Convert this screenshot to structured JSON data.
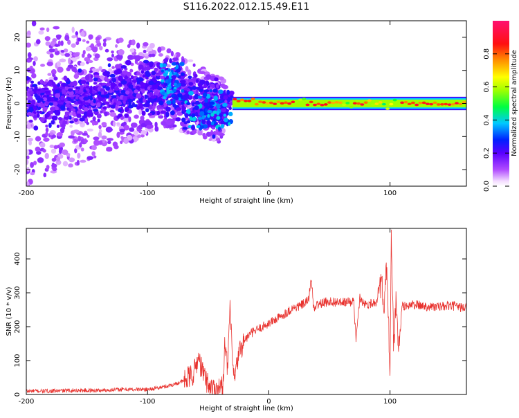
{
  "title": "S116.2022.012.15.49.E11",
  "colorbar": {
    "label": "Normalized spectral amplitude",
    "ticks": [
      "0.0",
      "0.2",
      "0.4",
      "0.6",
      "0.8"
    ]
  },
  "chart_data": [
    {
      "type": "heatmap",
      "xlabel": "Height of straight line (km)",
      "ylabel": "Frequency (Hz)",
      "xlim": [
        -200,
        163
      ],
      "ylim": [
        -25,
        25
      ],
      "x_ticks": [
        "-200",
        "-100",
        "0",
        "100"
      ],
      "y_ticks": [
        "20",
        "10",
        "0",
        "-10",
        "-20"
      ],
      "colormap": "rainbow (magenta-blue-cyan-green-yellow-red-pink)",
      "color_range": [
        0.0,
        1.0
      ],
      "description_points": [
        {
          "x": -200,
          "freq_center": 0,
          "spread": 25,
          "amp": 0.2
        },
        {
          "x": -85,
          "freq_center": 5,
          "spread": 12,
          "amp": 0.4
        },
        {
          "x": -40,
          "freq_center": -2,
          "spread": 10,
          "amp": 0.4
        },
        {
          "x": -30,
          "freq_center": 2,
          "spread": 2,
          "amp": 0.55
        },
        {
          "x": 0,
          "freq_center": 0,
          "spread": 1,
          "amp": 0.8
        },
        {
          "x": 100,
          "freq_center": 0,
          "spread": 2,
          "amp": 0.6
        },
        {
          "x": 163,
          "freq_center": 0,
          "spread": 1,
          "amp": 0.8
        }
      ]
    },
    {
      "type": "line",
      "xlabel": "Height of straight line (km)",
      "ylabel": "SNR (10 * v/v)",
      "xlim": [
        -200,
        163
      ],
      "ylim": [
        0,
        490
      ],
      "x_ticks": [
        "-200",
        "-100",
        "0",
        "100"
      ],
      "y_ticks": [
        "0",
        "100",
        "200",
        "300",
        "400"
      ],
      "series": [
        {
          "color": "#e8322e",
          "x": [
            -200,
            -180,
            -160,
            -140,
            -120,
            -100,
            -90,
            -80,
            -70,
            -62,
            -58,
            -55,
            -50,
            -45,
            -38,
            -36,
            -34,
            -32,
            -30,
            -28,
            -25,
            -20,
            -15,
            -10,
            -5,
            0,
            10,
            20,
            25,
            30,
            33,
            35,
            37,
            40,
            50,
            60,
            70,
            72,
            75,
            80,
            85,
            90,
            93,
            95,
            97,
            99,
            100,
            101,
            103,
            105,
            107,
            110,
            120,
            130,
            140,
            150,
            163
          ],
          "values": [
            10,
            10,
            12,
            12,
            15,
            15,
            20,
            28,
            40,
            60,
            110,
            70,
            30,
            15,
            20,
            170,
            60,
            270,
            90,
            40,
            120,
            160,
            180,
            190,
            200,
            210,
            230,
            255,
            260,
            270,
            280,
            350,
            250,
            265,
            275,
            270,
            275,
            160,
            285,
            265,
            270,
            275,
            340,
            230,
            380,
            180,
            60,
            470,
            140,
            280,
            130,
            260,
            265,
            260,
            258,
            262,
            255
          ]
        }
      ]
    }
  ]
}
